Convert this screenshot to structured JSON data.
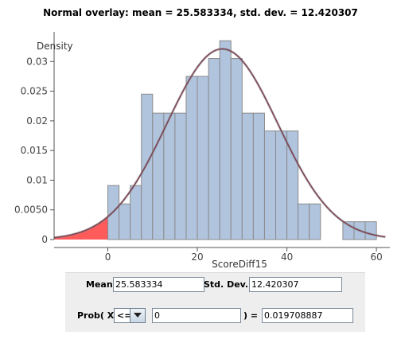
{
  "chart_data": {
    "type": "bar",
    "title": "Normal overlay: mean = 25.583334, std. dev. = 12.420307",
    "xlabel": "ScoreDiff15",
    "ylabel": "Density",
    "xlim": [
      -12,
      63
    ],
    "ylim": [
      0,
      0.035
    ],
    "x_ticks": [
      0,
      20,
      40,
      60
    ],
    "y_ticks": [
      0,
      0.005,
      0.01,
      0.015,
      0.02,
      0.025,
      0.03
    ],
    "y_tick_labels": [
      "0",
      "0.0050",
      "0.01",
      "0.015",
      "0.02",
      "0.025",
      "0.03"
    ],
    "bin_width": 2.5,
    "bins": [
      {
        "start": 0,
        "value": 0.0091
      },
      {
        "start": 2.5,
        "value": 0.006
      },
      {
        "start": 5,
        "value": 0.0091
      },
      {
        "start": 7.5,
        "value": 0.0245
      },
      {
        "start": 10,
        "value": 0.0213
      },
      {
        "start": 12.5,
        "value": 0.0213
      },
      {
        "start": 15,
        "value": 0.0213
      },
      {
        "start": 17.5,
        "value": 0.0275
      },
      {
        "start": 20,
        "value": 0.0275
      },
      {
        "start": 22.5,
        "value": 0.0305
      },
      {
        "start": 25,
        "value": 0.0335
      },
      {
        "start": 27.5,
        "value": 0.0305
      },
      {
        "start": 30,
        "value": 0.0213
      },
      {
        "start": 32.5,
        "value": 0.0213
      },
      {
        "start": 35,
        "value": 0.0183
      },
      {
        "start": 37.5,
        "value": 0.0183
      },
      {
        "start": 40,
        "value": 0.0183
      },
      {
        "start": 42.5,
        "value": 0.006
      },
      {
        "start": 45,
        "value": 0.006
      },
      {
        "start": 52.5,
        "value": 0.003
      },
      {
        "start": 55,
        "value": 0.003
      },
      {
        "start": 57.5,
        "value": 0.003
      }
    ],
    "normal_overlay": {
      "mean": 25.583334,
      "sd": 12.420307,
      "x_range": [
        -12,
        62
      ]
    },
    "shaded_region": {
      "from": -12,
      "to": 0,
      "color": "#ff5b5b"
    },
    "colors": {
      "bar_fill": "#b0c4de",
      "bar_stroke": "#8a8a8a",
      "curve": "#7b3f4f",
      "curve_shadow": "#888888"
    }
  },
  "controls": {
    "mean_label": "Mean:",
    "mean_value": "25.583334",
    "sd_label": "Std. Dev.:",
    "sd_value": "12.420307",
    "prob_label": "Prob( X",
    "inequality": "<=",
    "x_value": "0",
    "equals_label": ") =",
    "prob_value": "0.019708887"
  }
}
